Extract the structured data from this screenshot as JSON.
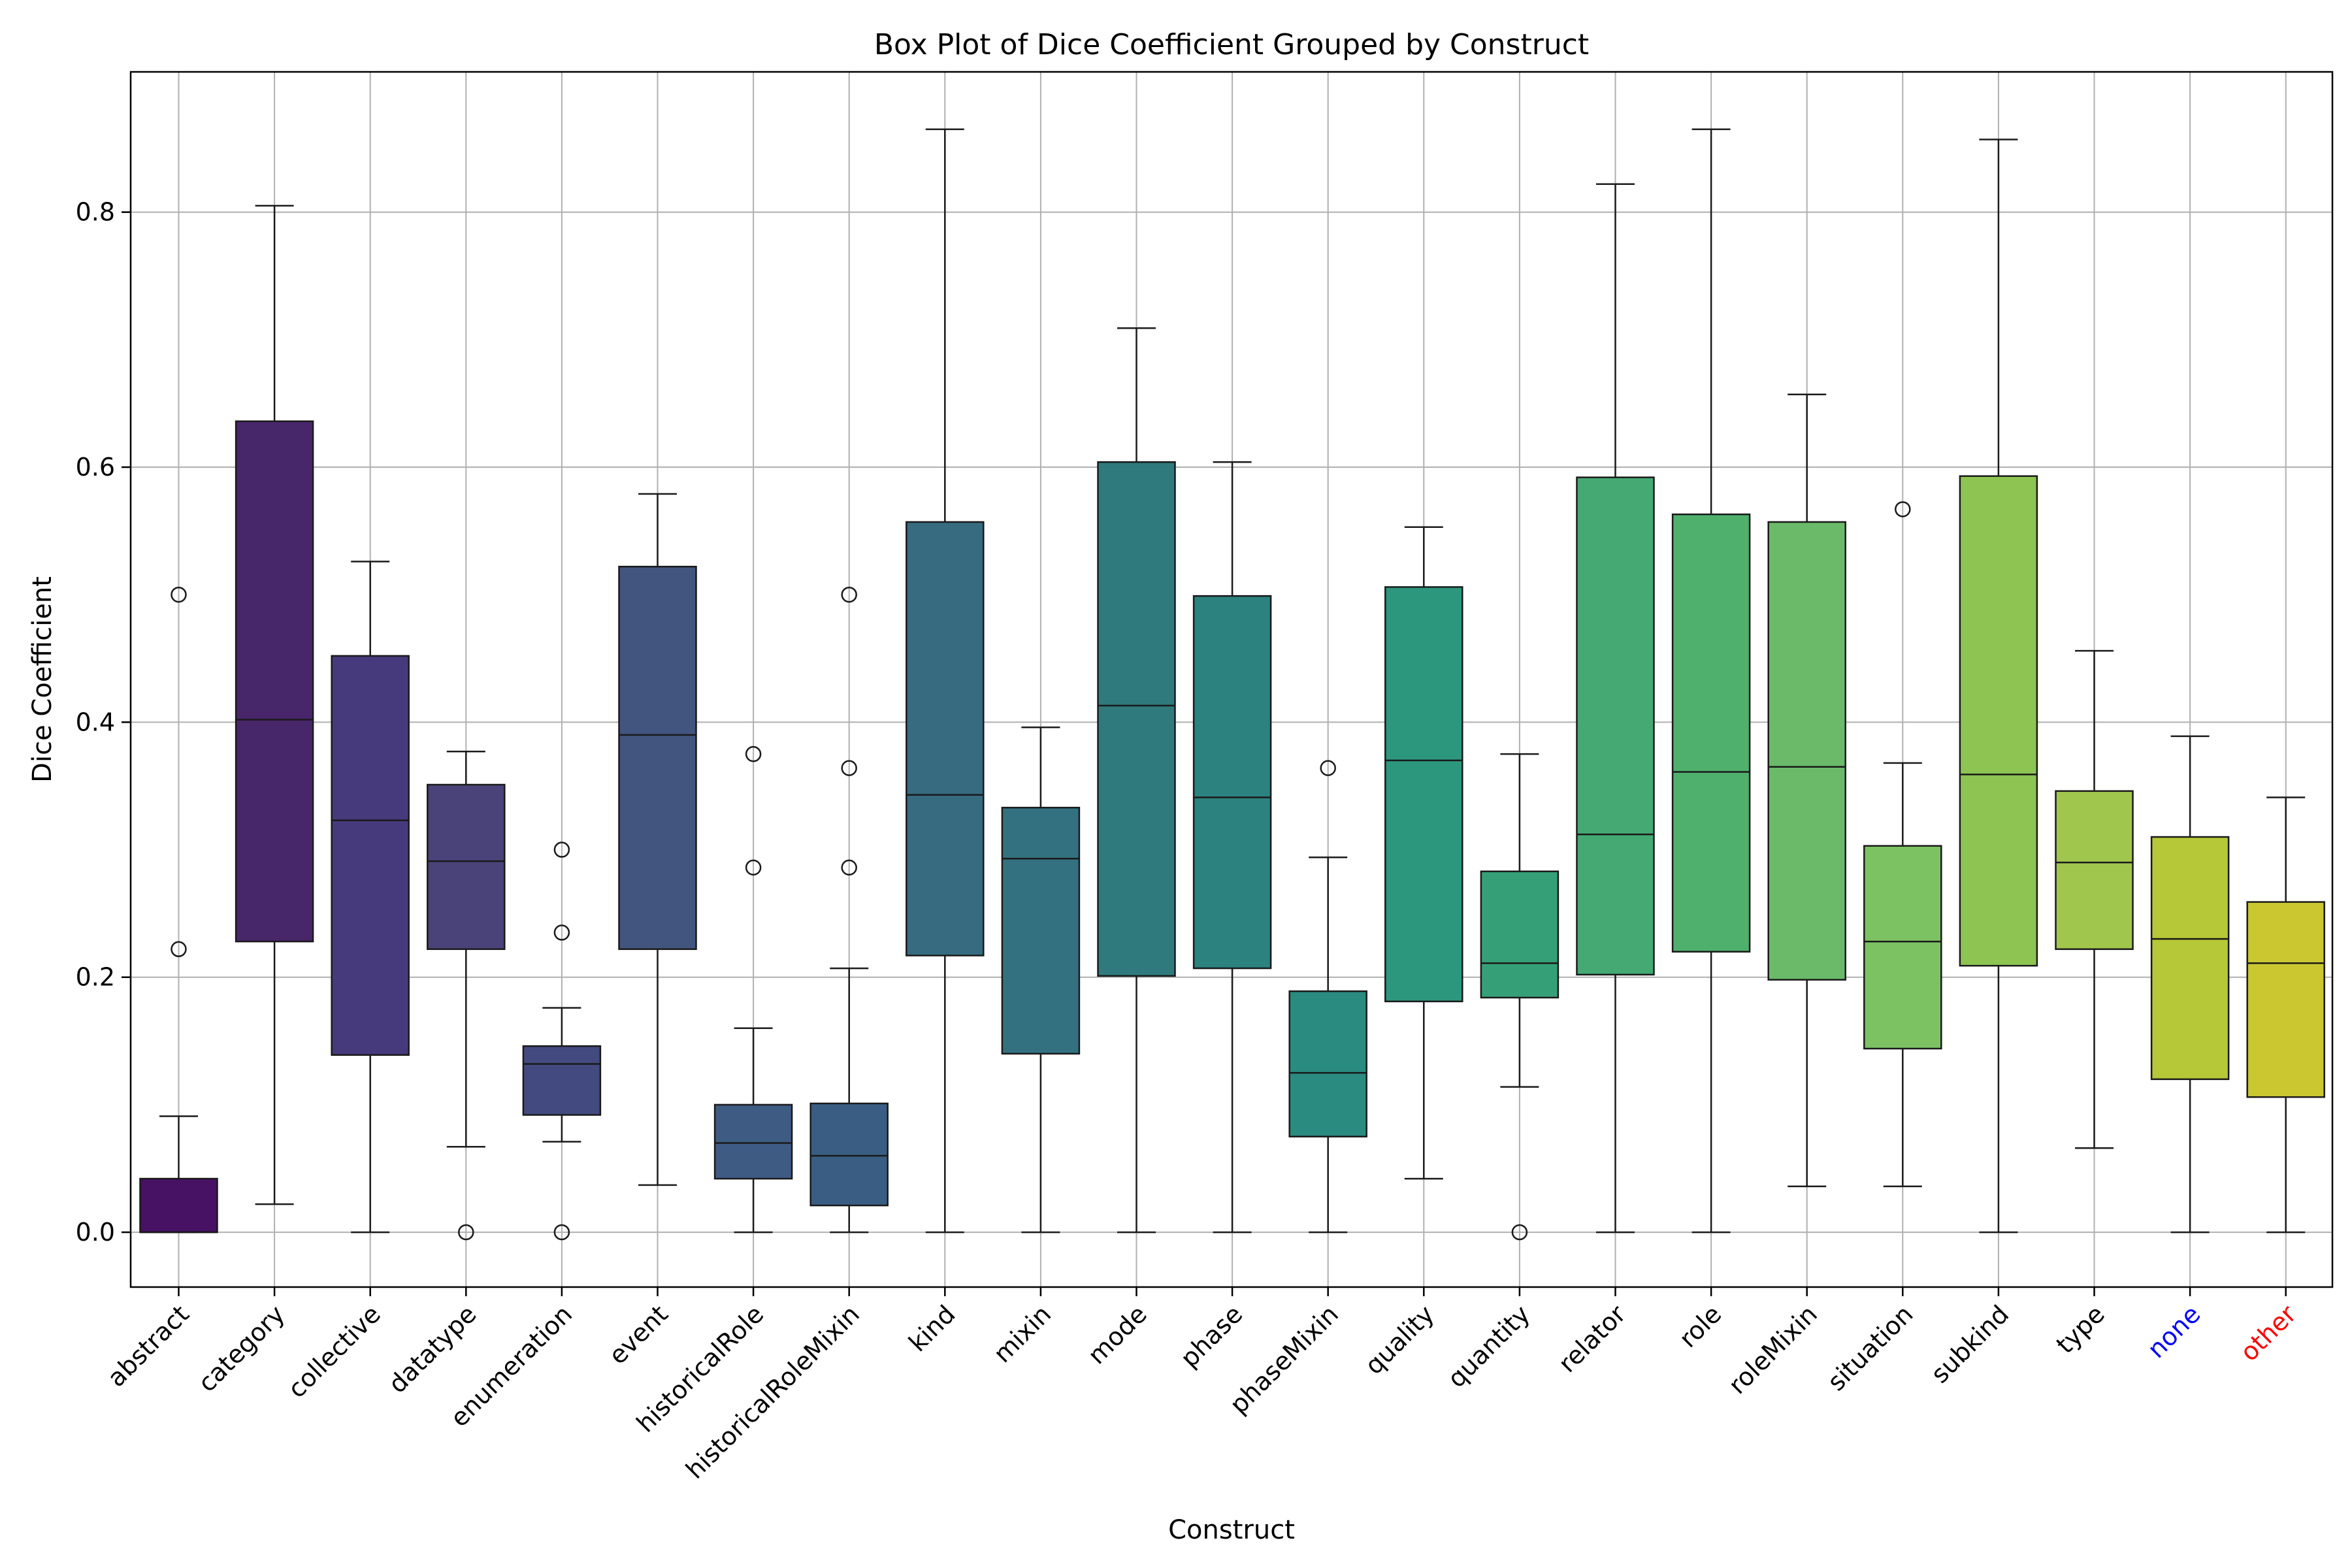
{
  "chart_data": {
    "type": "box",
    "title": "Box Plot of Dice Coefficient Grouped by Construct",
    "xlabel": "Construct",
    "ylabel": "Dice Coefficient",
    "ylim": [
      -0.043,
      0.91
    ],
    "yticks": [
      0.0,
      0.2,
      0.4,
      0.6,
      0.8
    ],
    "ytick_labels": [
      "0.0",
      "0.2",
      "0.4",
      "0.6",
      "0.8"
    ],
    "grid": true,
    "palette": "viridis",
    "categories": [
      {
        "name": "abstract",
        "label_color": "#000000",
        "color": "#471164",
        "whislo": 0.0,
        "q1": 0.0,
        "median": 0.0,
        "q3": 0.042,
        "whishi": 0.091,
        "fliers": [
          0.222,
          0.5
        ]
      },
      {
        "name": "category",
        "label_color": "#000000",
        "color": "#48266a",
        "whislo": 0.022,
        "q1": 0.228,
        "median": 0.402,
        "q3": 0.636,
        "whishi": 0.805,
        "fliers": []
      },
      {
        "name": "collective",
        "label_color": "#000000",
        "color": "#473a7c",
        "whislo": 0.0,
        "q1": 0.139,
        "median": 0.323,
        "q3": 0.452,
        "whishi": 0.526,
        "fliers": []
      },
      {
        "name": "datatype",
        "label_color": "#000000",
        "color": "#494379",
        "whislo": 0.067,
        "q1": 0.222,
        "median": 0.291,
        "q3": 0.351,
        "whishi": 0.377,
        "fliers": [
          0.0
        ]
      },
      {
        "name": "enumeration",
        "label_color": "#000000",
        "color": "#434a7f",
        "whislo": 0.071,
        "q1": 0.092,
        "median": 0.132,
        "q3": 0.146,
        "whishi": 0.176,
        "fliers": [
          0.0,
          0.235,
          0.3
        ]
      },
      {
        "name": "event",
        "label_color": "#000000",
        "color": "#42557f",
        "whislo": 0.037,
        "q1": 0.222,
        "median": 0.39,
        "q3": 0.522,
        "whishi": 0.579,
        "fliers": []
      },
      {
        "name": "historicalRole",
        "label_color": "#000000",
        "color": "#3e5b84",
        "whislo": 0.0,
        "q1": 0.042,
        "median": 0.07,
        "q3": 0.1,
        "whishi": 0.16,
        "fliers": [
          0.286,
          0.375
        ]
      },
      {
        "name": "historicalRoleMixin",
        "label_color": "#000000",
        "color": "#3a5e83",
        "whislo": 0.0,
        "q1": 0.021,
        "median": 0.06,
        "q3": 0.101,
        "whishi": 0.207,
        "fliers": [
          0.286,
          0.364,
          0.5
        ]
      },
      {
        "name": "kind",
        "label_color": "#000000",
        "color": "#376b80",
        "whislo": 0.0,
        "q1": 0.217,
        "median": 0.343,
        "q3": 0.557,
        "whishi": 0.865,
        "fliers": []
      },
      {
        "name": "mixin",
        "label_color": "#000000",
        "color": "#337180",
        "whislo": 0.0,
        "q1": 0.14,
        "median": 0.293,
        "q3": 0.333,
        "whishi": 0.396,
        "fliers": []
      },
      {
        "name": "mode",
        "label_color": "#000000",
        "color": "#2f7a7c",
        "whislo": 0.0,
        "q1": 0.201,
        "median": 0.413,
        "q3": 0.604,
        "whishi": 0.709,
        "fliers": []
      },
      {
        "name": "phase",
        "label_color": "#000000",
        "color": "#2c827e",
        "whislo": 0.0,
        "q1": 0.207,
        "median": 0.341,
        "q3": 0.499,
        "whishi": 0.604,
        "fliers": []
      },
      {
        "name": "phaseMixin",
        "label_color": "#000000",
        "color": "#2a8b80",
        "whislo": 0.0,
        "q1": 0.075,
        "median": 0.125,
        "q3": 0.189,
        "whishi": 0.294,
        "fliers": [
          0.364
        ]
      },
      {
        "name": "quality",
        "label_color": "#000000",
        "color": "#2d977d",
        "whislo": 0.042,
        "q1": 0.181,
        "median": 0.37,
        "q3": 0.506,
        "whishi": 0.553,
        "fliers": []
      },
      {
        "name": "quantity",
        "label_color": "#000000",
        "color": "#35a077",
        "whislo": 0.114,
        "q1": 0.184,
        "median": 0.211,
        "q3": 0.283,
        "whishi": 0.375,
        "fliers": [
          0.0
        ]
      },
      {
        "name": "relator",
        "label_color": "#000000",
        "color": "#44a972",
        "whislo": 0.0,
        "q1": 0.202,
        "median": 0.312,
        "q3": 0.592,
        "whishi": 0.822,
        "fliers": []
      },
      {
        "name": "role",
        "label_color": "#000000",
        "color": "#4fb06d",
        "whislo": 0.0,
        "q1": 0.22,
        "median": 0.361,
        "q3": 0.563,
        "whishi": 0.865,
        "fliers": []
      },
      {
        "name": "roleMixin",
        "label_color": "#000000",
        "color": "#6aba6a",
        "whislo": 0.036,
        "q1": 0.198,
        "median": 0.365,
        "q3": 0.557,
        "whishi": 0.657,
        "fliers": []
      },
      {
        "name": "situation",
        "label_color": "#000000",
        "color": "#7cc262",
        "whislo": 0.036,
        "q1": 0.144,
        "median": 0.228,
        "q3": 0.303,
        "whishi": 0.368,
        "fliers": [
          0.567
        ]
      },
      {
        "name": "subkind",
        "label_color": "#000000",
        "color": "#8dc452",
        "whislo": 0.0,
        "q1": 0.209,
        "median": 0.359,
        "q3": 0.593,
        "whishi": 0.857,
        "fliers": []
      },
      {
        "name": "type",
        "label_color": "#000000",
        "color": "#a1c64d",
        "whislo": 0.066,
        "q1": 0.222,
        "median": 0.29,
        "q3": 0.346,
        "whishi": 0.456,
        "fliers": []
      },
      {
        "name": "none",
        "label_color": "#0000ff",
        "color": "#b6c737",
        "whislo": 0.0,
        "q1": 0.12,
        "median": 0.23,
        "q3": 0.31,
        "whishi": 0.389,
        "fliers": []
      },
      {
        "name": "other",
        "label_color": "#ff0000",
        "color": "#cac731",
        "whislo": 0.0,
        "q1": 0.106,
        "median": 0.211,
        "q3": 0.259,
        "whishi": 0.341,
        "fliers": []
      }
    ]
  }
}
